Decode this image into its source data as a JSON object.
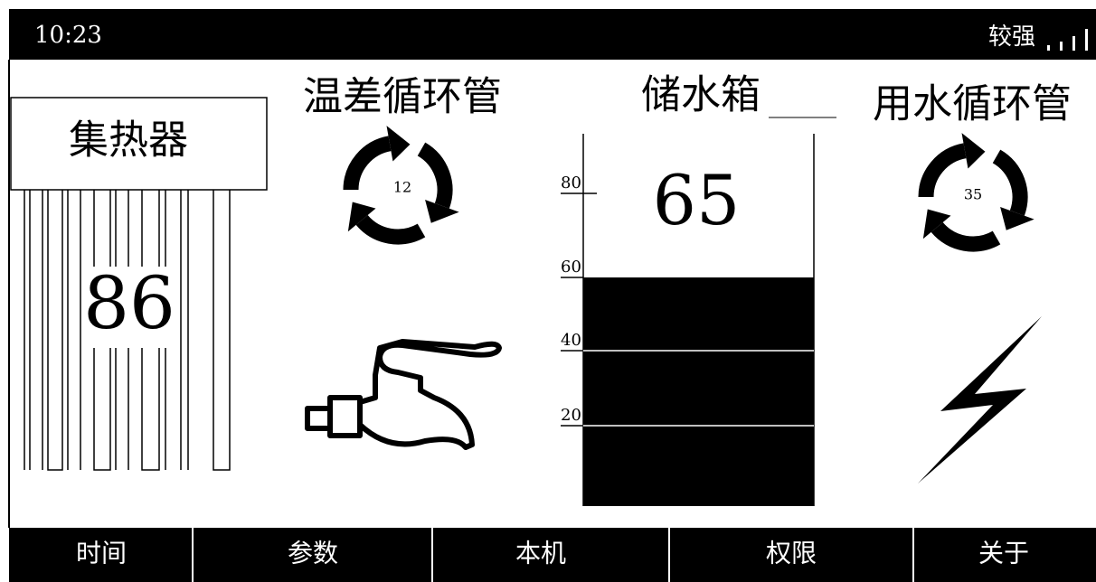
{
  "status_bar": {
    "time": "10:23",
    "signal": "较强"
  },
  "collector": {
    "label": "集热器",
    "value": 86
  },
  "temp_diff_pipe": {
    "label": "温差循环管",
    "value": 12
  },
  "tank": {
    "label": "储水箱",
    "value": 65,
    "scale": [
      80,
      60,
      40,
      20
    ]
  },
  "usage_pipe": {
    "label": "用水循环管",
    "value": 35
  },
  "nav": [
    "时间",
    "参数",
    "本机",
    "权限",
    "关于"
  ]
}
